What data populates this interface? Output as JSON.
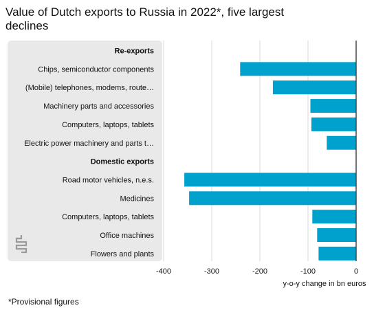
{
  "title": "Value of Dutch exports to Russia in 2022*, five largest declines",
  "footnote": "*Provisional figures",
  "colors": {
    "bar": "#00a1cd",
    "panel": "#e9e9e9",
    "grid": "#d9d9d9",
    "zero_line": "#333333"
  },
  "logo_icon": "cbs-logo-icon",
  "chart_data": {
    "type": "bar",
    "orientation": "horizontal",
    "xlabel": "y-o-y change in bn euros",
    "xlim": [
      -400,
      0
    ],
    "xticks": [
      "-400",
      "-300",
      "-200",
      "-100",
      "0"
    ],
    "grid": true,
    "rows": [
      {
        "label": "Re-exports",
        "header": true
      },
      {
        "label": "Chips, semiconductor components",
        "value": -241
      },
      {
        "label": "(Mobile) telephones, modems, route…",
        "value": -173
      },
      {
        "label": "Machinery parts and accessories",
        "value": -95
      },
      {
        "label": "Computers, laptops, tablets",
        "value": -93
      },
      {
        "label": "Electric power machinery and parts t…",
        "value": -61
      },
      {
        "label": "Domestic exports",
        "header": true
      },
      {
        "label": "Road motor vehicles, n.e.s.",
        "value": -357
      },
      {
        "label": "Medicines",
        "value": -347
      },
      {
        "label": "Computers, laptops, tablets",
        "value": -91
      },
      {
        "label": "Office machines",
        "value": -81
      },
      {
        "label": "Flowers and plants",
        "value": -78
      }
    ]
  }
}
